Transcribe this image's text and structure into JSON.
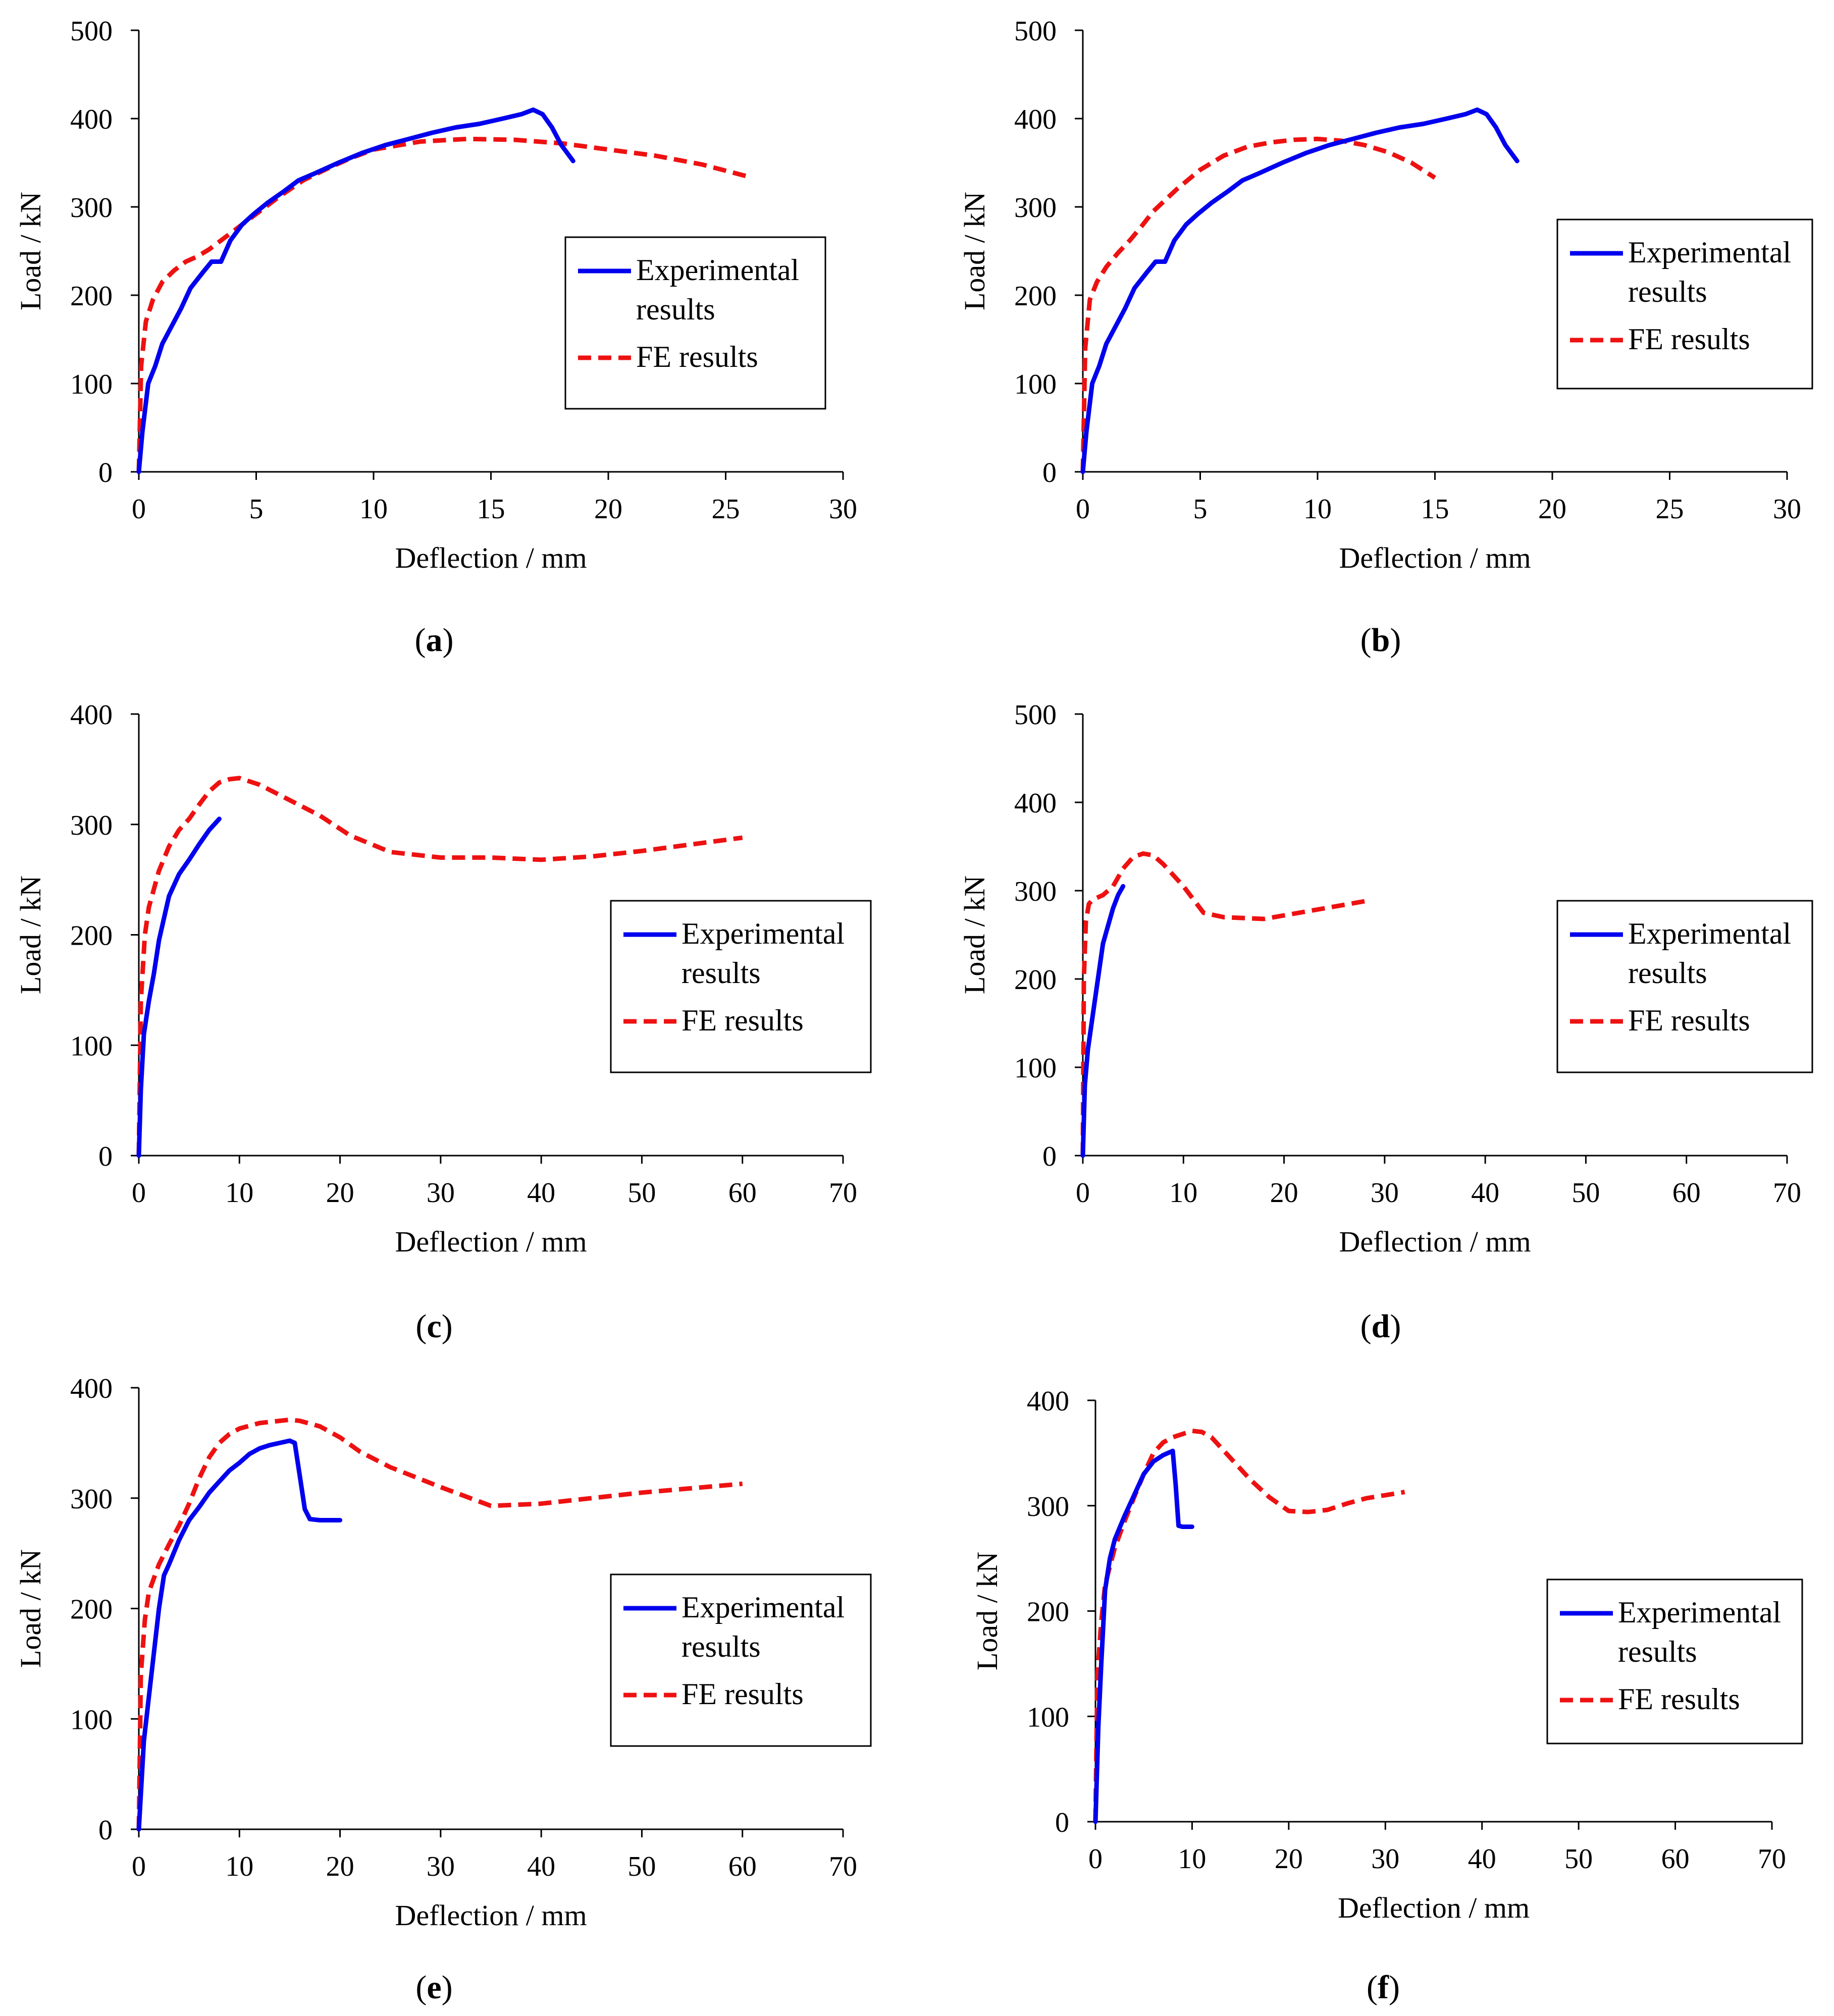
{
  "colors": {
    "experimental": "#0000EE",
    "fe": "#EE1111",
    "axis": "#000000"
  },
  "panels": [
    {
      "caption_open": "(",
      "caption_letter": "a",
      "caption_close": ")"
    },
    {
      "caption_open": "(",
      "caption_letter": "b",
      "caption_close": ")"
    },
    {
      "caption_open": "(",
      "caption_letter": "c",
      "caption_close": ")"
    },
    {
      "caption_open": "(",
      "caption_letter": "d",
      "caption_close": ")"
    },
    {
      "caption_open": "(",
      "caption_letter": "e",
      "caption_close": ")"
    },
    {
      "caption_open": "(",
      "caption_letter": "f",
      "caption_close": ")"
    }
  ],
  "chart_data": [
    {
      "id": "a",
      "type": "line",
      "xlabel": "Deflection / mm",
      "ylabel": "Load / kN",
      "xlim": [
        0,
        30
      ],
      "ylim": [
        0,
        500
      ],
      "xticks": [
        0,
        5,
        10,
        15,
        20,
        25,
        30
      ],
      "yticks": [
        0,
        100,
        200,
        300,
        400,
        500
      ],
      "legend": {
        "position": "right",
        "entries": [
          {
            "label_line1": "Experimental",
            "label_line2": "results"
          },
          {
            "label_line1": "FE results",
            "label_line2": ""
          }
        ]
      },
      "series": [
        {
          "name": "Experimental results",
          "style": "solid",
          "x": [
            0,
            0.15,
            0.4,
            0.7,
            1.0,
            1.4,
            1.8,
            2.2,
            2.7,
            3.1,
            3.5,
            3.9,
            4.4,
            4.9,
            5.5,
            6.2,
            6.8,
            7.5,
            8.5,
            9.5,
            10.5,
            11.5,
            12.5,
            13.5,
            14.5,
            15.5,
            16.3,
            16.8,
            17.2,
            17.6,
            18.0,
            18.5
          ],
          "y": [
            0,
            45,
            100,
            120,
            145,
            165,
            185,
            208,
            225,
            238,
            238,
            262,
            280,
            292,
            305,
            318,
            330,
            338,
            350,
            361,
            370,
            377,
            384,
            390,
            394,
            400,
            405,
            410,
            405,
            390,
            370,
            352
          ]
        },
        {
          "name": "FE results",
          "style": "dashed",
          "x": [
            0,
            0.1,
            0.3,
            0.6,
            1.0,
            1.5,
            2.0,
            2.5,
            3.0,
            4.0,
            5.0,
            6.0,
            7.0,
            8.0,
            9.0,
            10.0,
            12.0,
            14.0,
            16.0,
            18.0,
            20.0,
            22.0,
            24.0,
            26.0
          ],
          "y": [
            0,
            120,
            170,
            195,
            215,
            228,
            238,
            244,
            252,
            272,
            292,
            312,
            330,
            343,
            355,
            365,
            374,
            377,
            376,
            372,
            365,
            358,
            348,
            334
          ]
        }
      ]
    },
    {
      "id": "b",
      "type": "line",
      "xlabel": "Deflection / mm",
      "ylabel": "Load / kN",
      "xlim": [
        0,
        30
      ],
      "ylim": [
        0,
        500
      ],
      "xticks": [
        0,
        5,
        10,
        15,
        20,
        25,
        30
      ],
      "yticks": [
        0,
        100,
        200,
        300,
        400,
        500
      ],
      "legend": {
        "position": "right",
        "entries": [
          {
            "label_line1": "Experimental",
            "label_line2": "results"
          },
          {
            "label_line1": "FE results",
            "label_line2": ""
          }
        ]
      },
      "series": [
        {
          "name": "Experimental results",
          "style": "solid",
          "x": [
            0,
            0.15,
            0.4,
            0.7,
            1.0,
            1.4,
            1.8,
            2.2,
            2.7,
            3.1,
            3.5,
            3.9,
            4.4,
            4.9,
            5.5,
            6.2,
            6.8,
            7.5,
            8.5,
            9.5,
            10.5,
            11.5,
            12.5,
            13.5,
            14.5,
            15.5,
            16.3,
            16.8,
            17.2,
            17.6,
            18.0,
            18.5
          ],
          "y": [
            0,
            45,
            100,
            120,
            145,
            165,
            185,
            208,
            225,
            238,
            238,
            262,
            280,
            292,
            305,
            318,
            330,
            338,
            350,
            361,
            370,
            377,
            384,
            390,
            394,
            400,
            405,
            410,
            405,
            390,
            370,
            352
          ]
        },
        {
          "name": "FE results",
          "style": "dashed",
          "x": [
            0,
            0.1,
            0.3,
            0.6,
            1.0,
            1.5,
            2.0,
            2.5,
            3.0,
            4.0,
            5.0,
            6.0,
            7.0,
            8.0,
            9.0,
            10.0,
            11.0,
            12.0,
            13.0,
            14.0,
            15.0
          ],
          "y": [
            0,
            140,
            195,
            215,
            232,
            248,
            262,
            278,
            295,
            320,
            342,
            358,
            368,
            373,
            376,
            377,
            375,
            370,
            362,
            350,
            333
          ]
        }
      ]
    },
    {
      "id": "c",
      "type": "line",
      "xlabel": "Deflection / mm",
      "ylabel": "Load / kN",
      "xlim": [
        0,
        70
      ],
      "ylim": [
        0,
        400
      ],
      "xticks": [
        0,
        10,
        20,
        30,
        40,
        50,
        60,
        70
      ],
      "yticks": [
        0,
        100,
        200,
        300,
        400
      ],
      "legend": {
        "position": "right",
        "entries": [
          {
            "label_line1": "Experimental",
            "label_line2": "results"
          },
          {
            "label_line1": "FE results",
            "label_line2": ""
          }
        ]
      },
      "series": [
        {
          "name": "Experimental results",
          "style": "solid",
          "x": [
            0,
            0.2,
            0.5,
            1.0,
            1.5,
            2.0,
            2.5,
            3.0,
            4.0,
            5.0,
            6.0,
            7.0,
            8.0
          ],
          "y": [
            0,
            60,
            110,
            140,
            165,
            195,
            215,
            235,
            255,
            268,
            282,
            295,
            305
          ]
        },
        {
          "name": "FE results",
          "style": "dashed",
          "x": [
            0,
            0.2,
            0.6,
            1.0,
            2.0,
            3.0,
            4.0,
            5.0,
            6.0,
            7.0,
            8.0,
            9.0,
            10.0,
            12.0,
            15.0,
            18.0,
            21.0,
            25.0,
            30.0,
            35.0,
            40.0,
            45.0,
            50.0,
            55.0,
            60.0
          ],
          "y": [
            0,
            140,
            200,
            225,
            258,
            280,
            295,
            305,
            318,
            330,
            338,
            341,
            342,
            336,
            322,
            308,
            290,
            275,
            270,
            270,
            268,
            271,
            276,
            282,
            288
          ]
        }
      ]
    },
    {
      "id": "d",
      "type": "line",
      "xlabel": "Deflection / mm",
      "ylabel": "Load / kN",
      "xlim": [
        0,
        70
      ],
      "ylim": [
        0,
        500
      ],
      "xticks": [
        0,
        10,
        20,
        30,
        40,
        50,
        60,
        70
      ],
      "yticks": [
        0,
        100,
        200,
        300,
        400,
        500
      ],
      "legend": {
        "position": "right",
        "entries": [
          {
            "label_line1": "Experimental",
            "label_line2": "results"
          },
          {
            "label_line1": "FE results",
            "label_line2": ""
          }
        ]
      },
      "series": [
        {
          "name": "Experimental results",
          "style": "solid",
          "x": [
            0,
            0.2,
            0.5,
            1.0,
            1.5,
            2.0,
            2.5,
            3.0,
            3.5,
            4.0
          ],
          "y": [
            0,
            80,
            120,
            160,
            200,
            240,
            260,
            280,
            295,
            305
          ]
        },
        {
          "name": "FE results",
          "style": "dashed",
          "x": [
            0,
            0.1,
            0.3,
            0.6,
            1.0,
            2.0,
            3.0,
            4.0,
            5.0,
            6.0,
            7.0,
            8.0,
            10.0,
            12.0,
            14.0,
            16.0,
            18.0,
            20.0,
            24.0,
            28.0
          ],
          "y": [
            0,
            200,
            265,
            285,
            290,
            295,
            305,
            325,
            338,
            342,
            340,
            330,
            305,
            275,
            270,
            269,
            268,
            272,
            280,
            288
          ]
        }
      ]
    },
    {
      "id": "e",
      "type": "line",
      "xlabel": "Deflection / mm",
      "ylabel": "Load / kN",
      "xlim": [
        0,
        70
      ],
      "ylim": [
        0,
        400
      ],
      "xticks": [
        0,
        10,
        20,
        30,
        40,
        50,
        60,
        70
      ],
      "yticks": [
        0,
        100,
        200,
        300,
        400
      ],
      "legend": {
        "position": "right",
        "entries": [
          {
            "label_line1": "Experimental",
            "label_line2": "results"
          },
          {
            "label_line1": "FE results",
            "label_line2": ""
          }
        ]
      },
      "series": [
        {
          "name": "Experimental results",
          "style": "solid",
          "x": [
            0,
            0.5,
            1.0,
            1.5,
            2.0,
            2.5,
            3.0,
            4.0,
            5.0,
            6.0,
            7.0,
            8.0,
            9.0,
            10.0,
            11.0,
            12.0,
            13.0,
            14.0,
            15.0,
            15.5,
            16.0,
            16.5,
            17.0,
            18.0,
            19.0,
            20.0
          ],
          "y": [
            0,
            80,
            120,
            160,
            200,
            230,
            240,
            262,
            280,
            292,
            305,
            315,
            325,
            332,
            340,
            345,
            348,
            350,
            352,
            350,
            320,
            290,
            281,
            280,
            280,
            280
          ]
        },
        {
          "name": "FE results",
          "style": "dashed",
          "x": [
            0,
            0.2,
            0.6,
            1.0,
            2.0,
            3.0,
            4.0,
            5.0,
            6.0,
            7.0,
            8.0,
            9.0,
            10.0,
            12.0,
            14.0,
            15.0,
            16.0,
            18.0,
            20.0,
            22.0,
            25.0,
            30.0,
            35.0,
            40.0,
            45.0,
            50.0,
            55.0,
            60.0
          ],
          "y": [
            0,
            140,
            190,
            215,
            240,
            258,
            275,
            295,
            318,
            337,
            350,
            358,
            363,
            368,
            370,
            371,
            370,
            365,
            355,
            342,
            328,
            310,
            293,
            295,
            300,
            305,
            309,
            313
          ]
        }
      ]
    },
    {
      "id": "f",
      "type": "line",
      "xlabel": "Deflection / mm",
      "ylabel": "Load / kN",
      "xlim": [
        0,
        70
      ],
      "ylim": [
        0,
        400
      ],
      "xticks": [
        0,
        10,
        20,
        30,
        40,
        50,
        60,
        70
      ],
      "yticks": [
        0,
        100,
        200,
        300,
        400
      ],
      "legend": {
        "position": "right",
        "entries": [
          {
            "label_line1": "Experimental",
            "label_line2": "results"
          },
          {
            "label_line1": "FE results",
            "label_line2": ""
          }
        ]
      },
      "series": [
        {
          "name": "Experimental results",
          "style": "solid",
          "x": [
            0,
            0.3,
            0.6,
            1.0,
            1.5,
            2.0,
            3.0,
            4.0,
            5.0,
            6.0,
            7.0,
            7.5,
            8.0,
            8.3,
            8.6,
            9.0,
            10.0
          ],
          "y": [
            0,
            90,
            150,
            220,
            250,
            268,
            290,
            310,
            330,
            342,
            348,
            350,
            352,
            320,
            281,
            280,
            280
          ]
        },
        {
          "name": "FE results",
          "style": "dashed",
          "x": [
            0,
            0.2,
            0.6,
            1.0,
            2.0,
            3.0,
            4.0,
            5.0,
            6.0,
            7.0,
            8.0,
            9.0,
            10.0,
            11.0,
            12.0,
            14.0,
            16.0,
            18.0,
            20.0,
            22.0,
            24.0,
            26.0,
            28.0,
            30.0,
            32.0
          ],
          "y": [
            0,
            140,
            190,
            225,
            260,
            285,
            308,
            330,
            350,
            360,
            365,
            368,
            371,
            370,
            365,
            345,
            325,
            308,
            295,
            294,
            296,
            302,
            307,
            310,
            313
          ]
        }
      ]
    }
  ]
}
